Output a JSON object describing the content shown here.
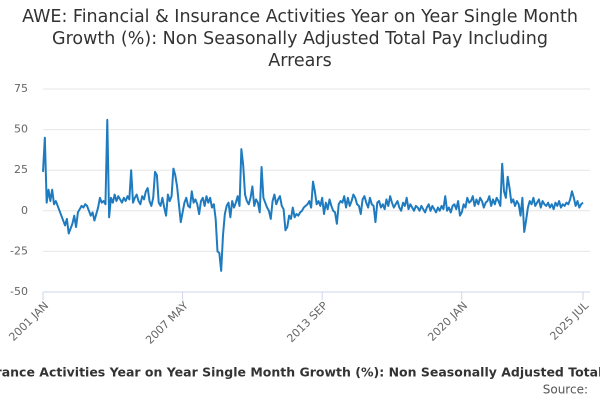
{
  "chart_data": {
    "type": "line",
    "title": "AWE: Financial & Insurance Activities Year on Year Single Month Growth (%): Non Seasonally Adjusted Total Pay Including Arrears",
    "source": "Source:",
    "x": [
      "2001-01",
      "2001-02",
      "2001-03",
      "2001-04",
      "2001-05",
      "2001-06",
      "2001-07",
      "2001-08",
      "2001-09",
      "2001-10",
      "2001-11",
      "2001-12",
      "2002-01",
      "2002-02",
      "2002-03",
      "2002-04",
      "2002-05",
      "2002-06",
      "2002-07",
      "2002-08",
      "2002-09",
      "2002-10",
      "2002-11",
      "2002-12",
      "2003-01",
      "2003-02",
      "2003-03",
      "2003-04",
      "2003-05",
      "2003-06",
      "2003-07",
      "2003-08",
      "2003-09",
      "2003-10",
      "2003-11",
      "2003-12",
      "2004-01",
      "2004-02",
      "2004-03",
      "2004-04",
      "2004-05",
      "2004-06",
      "2004-07",
      "2004-08",
      "2004-09",
      "2004-10",
      "2004-11",
      "2004-12",
      "2005-01",
      "2005-02",
      "2005-03",
      "2005-04",
      "2005-05",
      "2005-06",
      "2005-07",
      "2005-08",
      "2005-09",
      "2005-10",
      "2005-11",
      "2005-12",
      "2006-01",
      "2006-02",
      "2006-03",
      "2006-04",
      "2006-05",
      "2006-06",
      "2006-07",
      "2006-08",
      "2006-09",
      "2006-10",
      "2006-11",
      "2006-12",
      "2007-01",
      "2007-02",
      "2007-03",
      "2007-04",
      "2007-05",
      "2007-06",
      "2007-07",
      "2007-08",
      "2007-09",
      "2007-10",
      "2007-11",
      "2007-12",
      "2008-01",
      "2008-02",
      "2008-03",
      "2008-04",
      "2008-05",
      "2008-06",
      "2008-07",
      "2008-08",
      "2008-09",
      "2008-10",
      "2008-11",
      "2008-12",
      "2009-01",
      "2009-02",
      "2009-03",
      "2009-04",
      "2009-05",
      "2009-06",
      "2009-07",
      "2009-08",
      "2009-09",
      "2009-10",
      "2009-11",
      "2009-12",
      "2010-01",
      "2010-02",
      "2010-03",
      "2010-04",
      "2010-05",
      "2010-06",
      "2010-07",
      "2010-08",
      "2010-09",
      "2010-10",
      "2010-11",
      "2010-12",
      "2011-01",
      "2011-02",
      "2011-03",
      "2011-04",
      "2011-05",
      "2011-06",
      "2011-07",
      "2011-08",
      "2011-09",
      "2011-10",
      "2011-11",
      "2011-12",
      "2012-01",
      "2012-02",
      "2012-03",
      "2012-04",
      "2012-05",
      "2012-06",
      "2012-07",
      "2012-08",
      "2012-09",
      "2012-10",
      "2012-11",
      "2012-12",
      "2013-01",
      "2013-02",
      "2013-03",
      "2013-04",
      "2013-05",
      "2013-06",
      "2013-07",
      "2013-08",
      "2013-09",
      "2013-10",
      "2013-11",
      "2013-12",
      "2014-01",
      "2014-02",
      "2014-03",
      "2014-04",
      "2014-05",
      "2014-06",
      "2014-07",
      "2014-08",
      "2014-09",
      "2014-10",
      "2014-11",
      "2014-12",
      "2015-01",
      "2015-02",
      "2015-03",
      "2015-04",
      "2015-05",
      "2015-06",
      "2015-07",
      "2015-08",
      "2015-09",
      "2015-10",
      "2015-11",
      "2015-12",
      "2016-01",
      "2016-02",
      "2016-03",
      "2016-04",
      "2016-05",
      "2016-06",
      "2016-07",
      "2016-08",
      "2016-09",
      "2016-10",
      "2016-11",
      "2016-12",
      "2017-01",
      "2017-02",
      "2017-03",
      "2017-04",
      "2017-05",
      "2017-06",
      "2017-07",
      "2017-08",
      "2017-09",
      "2017-10",
      "2017-11",
      "2017-12",
      "2018-01",
      "2018-02",
      "2018-03",
      "2018-04",
      "2018-05",
      "2018-06",
      "2018-07",
      "2018-08",
      "2018-09",
      "2018-10",
      "2018-11",
      "2018-12",
      "2019-01",
      "2019-02",
      "2019-03",
      "2019-04",
      "2019-05",
      "2019-06",
      "2019-07",
      "2019-08",
      "2019-09",
      "2019-10",
      "2019-11",
      "2019-12",
      "2020-01",
      "2020-02",
      "2020-03",
      "2020-04",
      "2020-05",
      "2020-06",
      "2020-07",
      "2020-08",
      "2020-09",
      "2020-10",
      "2020-11",
      "2020-12",
      "2021-01",
      "2021-02",
      "2021-03",
      "2021-04",
      "2021-05",
      "2021-06",
      "2021-07",
      "2021-08",
      "2021-09",
      "2021-10",
      "2021-11",
      "2021-12",
      "2022-01",
      "2022-02",
      "2022-03",
      "2022-04",
      "2022-05",
      "2022-06",
      "2022-07",
      "2022-08",
      "2022-09",
      "2022-10",
      "2022-11",
      "2022-12",
      "2023-01",
      "2023-02",
      "2023-03",
      "2023-04",
      "2023-05",
      "2023-06",
      "2023-07",
      "2023-08",
      "2023-09",
      "2023-10",
      "2023-11",
      "2023-12",
      "2024-01",
      "2024-02",
      "2024-03",
      "2024-04",
      "2024-05",
      "2024-06",
      "2024-07",
      "2024-08",
      "2024-09",
      "2024-10",
      "2024-11",
      "2024-12",
      "2025-01",
      "2025-02",
      "2025-03",
      "2025-04",
      "2025-05",
      "2025-06",
      "2025-07"
    ],
    "series": [
      {
        "name": "AWE: Financial & Insurance Activities Year on Year Single Month Growth (%): Non Seasonally Adjusted Total Pay Including Arrears",
        "color": "#1f7bbf",
        "values": [
          24,
          45,
          5,
          13,
          6,
          13,
          4,
          6,
          3,
          0,
          -3,
          -6,
          -9,
          -5,
          -14,
          -11,
          -8,
          -3,
          -10,
          -1,
          1,
          3,
          2,
          4,
          3,
          0,
          -3,
          -1,
          -6,
          -2,
          2,
          8,
          5,
          6,
          4,
          56,
          -4,
          8,
          5,
          10,
          6,
          9,
          7,
          5,
          8,
          6,
          9,
          7,
          25,
          5,
          8,
          10,
          6,
          4,
          9,
          7,
          12,
          14,
          6,
          3,
          8,
          24,
          22,
          5,
          3,
          8,
          2,
          -3,
          10,
          6,
          9,
          26,
          22,
          15,
          4,
          -7,
          -1,
          5,
          8,
          3,
          2,
          12,
          5,
          7,
          4,
          -2,
          6,
          8,
          3,
          9,
          5,
          8,
          2,
          4,
          -5,
          -25,
          -26,
          -37,
          -15,
          -2,
          3,
          5,
          -4,
          6,
          2,
          5,
          9,
          3,
          38,
          28,
          10,
          6,
          4,
          8,
          15,
          3,
          7,
          5,
          -1,
          27,
          8,
          5,
          2,
          0,
          -5,
          6,
          10,
          4,
          7,
          9,
          3,
          1,
          -12,
          -10,
          -3,
          -5,
          2,
          -4,
          -2,
          -3,
          -1,
          0,
          2,
          3,
          4,
          6,
          2,
          18,
          12,
          4,
          6,
          3,
          8,
          -2,
          5,
          1,
          7,
          3,
          0,
          -1,
          -8,
          4,
          6,
          5,
          9,
          2,
          8,
          3,
          6,
          10,
          8,
          4,
          3,
          -2,
          7,
          9,
          5,
          2,
          8,
          4,
          3,
          -7,
          5,
          6,
          2,
          4,
          1,
          7,
          3,
          9,
          5,
          2,
          4,
          6,
          2,
          0,
          5,
          3,
          8,
          1,
          4,
          2,
          0,
          3,
          2,
          0,
          3,
          1,
          -1,
          2,
          4,
          0,
          3,
          1,
          -1,
          2,
          0,
          3,
          1,
          9,
          0,
          2,
          -1,
          3,
          4,
          1,
          6,
          -3,
          -1,
          4,
          2,
          8,
          5,
          6,
          9,
          3,
          7,
          4,
          8,
          6,
          2,
          5,
          6,
          9,
          3,
          7,
          4,
          8,
          6,
          3,
          29,
          12,
          8,
          21,
          14,
          5,
          7,
          3,
          6,
          4,
          -3,
          8,
          -13,
          -6,
          2,
          6,
          4,
          8,
          3,
          5,
          7,
          2,
          6,
          4,
          3,
          5,
          2,
          4,
          1,
          5,
          3,
          6,
          2,
          4,
          3,
          5,
          4,
          7,
          12,
          8,
          3,
          6,
          2,
          4,
          5
        ]
      }
    ],
    "xticks": [
      {
        "value": "2001-01",
        "label": "2001 JAN"
      },
      {
        "value": "2007-05",
        "label": "2007 MAY"
      },
      {
        "value": "2013-09",
        "label": "2013 SEP"
      },
      {
        "value": "2020-01",
        "label": "2020 JAN"
      },
      {
        "value": "2025-07",
        "label": "2025 JUL"
      }
    ],
    "ylim": [
      -50,
      75
    ],
    "yticks": [
      -50,
      -25,
      0,
      25,
      50,
      75
    ],
    "grid": true
  }
}
